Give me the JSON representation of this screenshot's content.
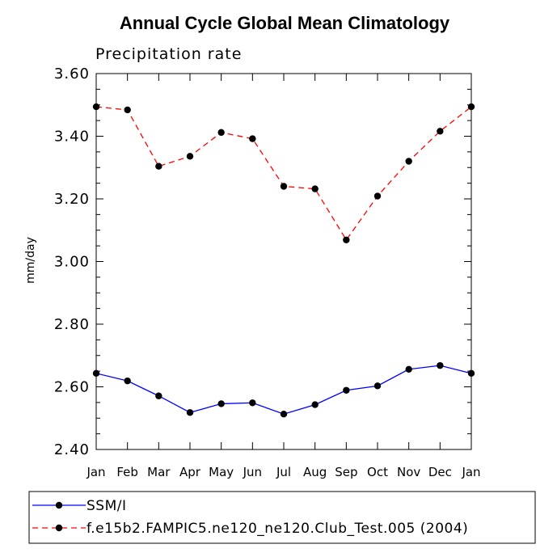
{
  "chart_data": {
    "type": "line",
    "title": "Annual Cycle Global Mean Climatology",
    "subtitle": "Precipitation rate",
    "ylabel": "mm/day",
    "xlabel": "",
    "ylim": [
      2.4,
      3.6
    ],
    "yticks": [
      "2.40",
      "2.60",
      "2.80",
      "3.00",
      "3.20",
      "3.40",
      "3.60"
    ],
    "ytick_values": [
      2.4,
      2.6,
      2.8,
      3.0,
      3.2,
      3.4,
      3.6
    ],
    "categories": [
      "Jan",
      "Feb",
      "Mar",
      "Apr",
      "May",
      "Jun",
      "Jul",
      "Aug",
      "Sep",
      "Oct",
      "Nov",
      "Dec",
      "Jan"
    ],
    "series": [
      {
        "name": "SSM/I",
        "color": "#0000ff",
        "style": "solid",
        "values": [
          2.643,
          2.619,
          2.571,
          2.518,
          2.546,
          2.549,
          2.513,
          2.543,
          2.589,
          2.603,
          2.656,
          2.668,
          2.643
        ]
      },
      {
        "name": "f.e15b2.FAMPIC5.ne120_ne120.Club_Test.005 (2004)",
        "color": "#ff0000",
        "style": "dashed",
        "values": [
          3.494,
          3.484,
          3.304,
          3.336,
          3.412,
          3.392,
          3.24,
          3.232,
          3.069,
          3.209,
          3.32,
          3.416,
          3.494
        ]
      }
    ]
  }
}
